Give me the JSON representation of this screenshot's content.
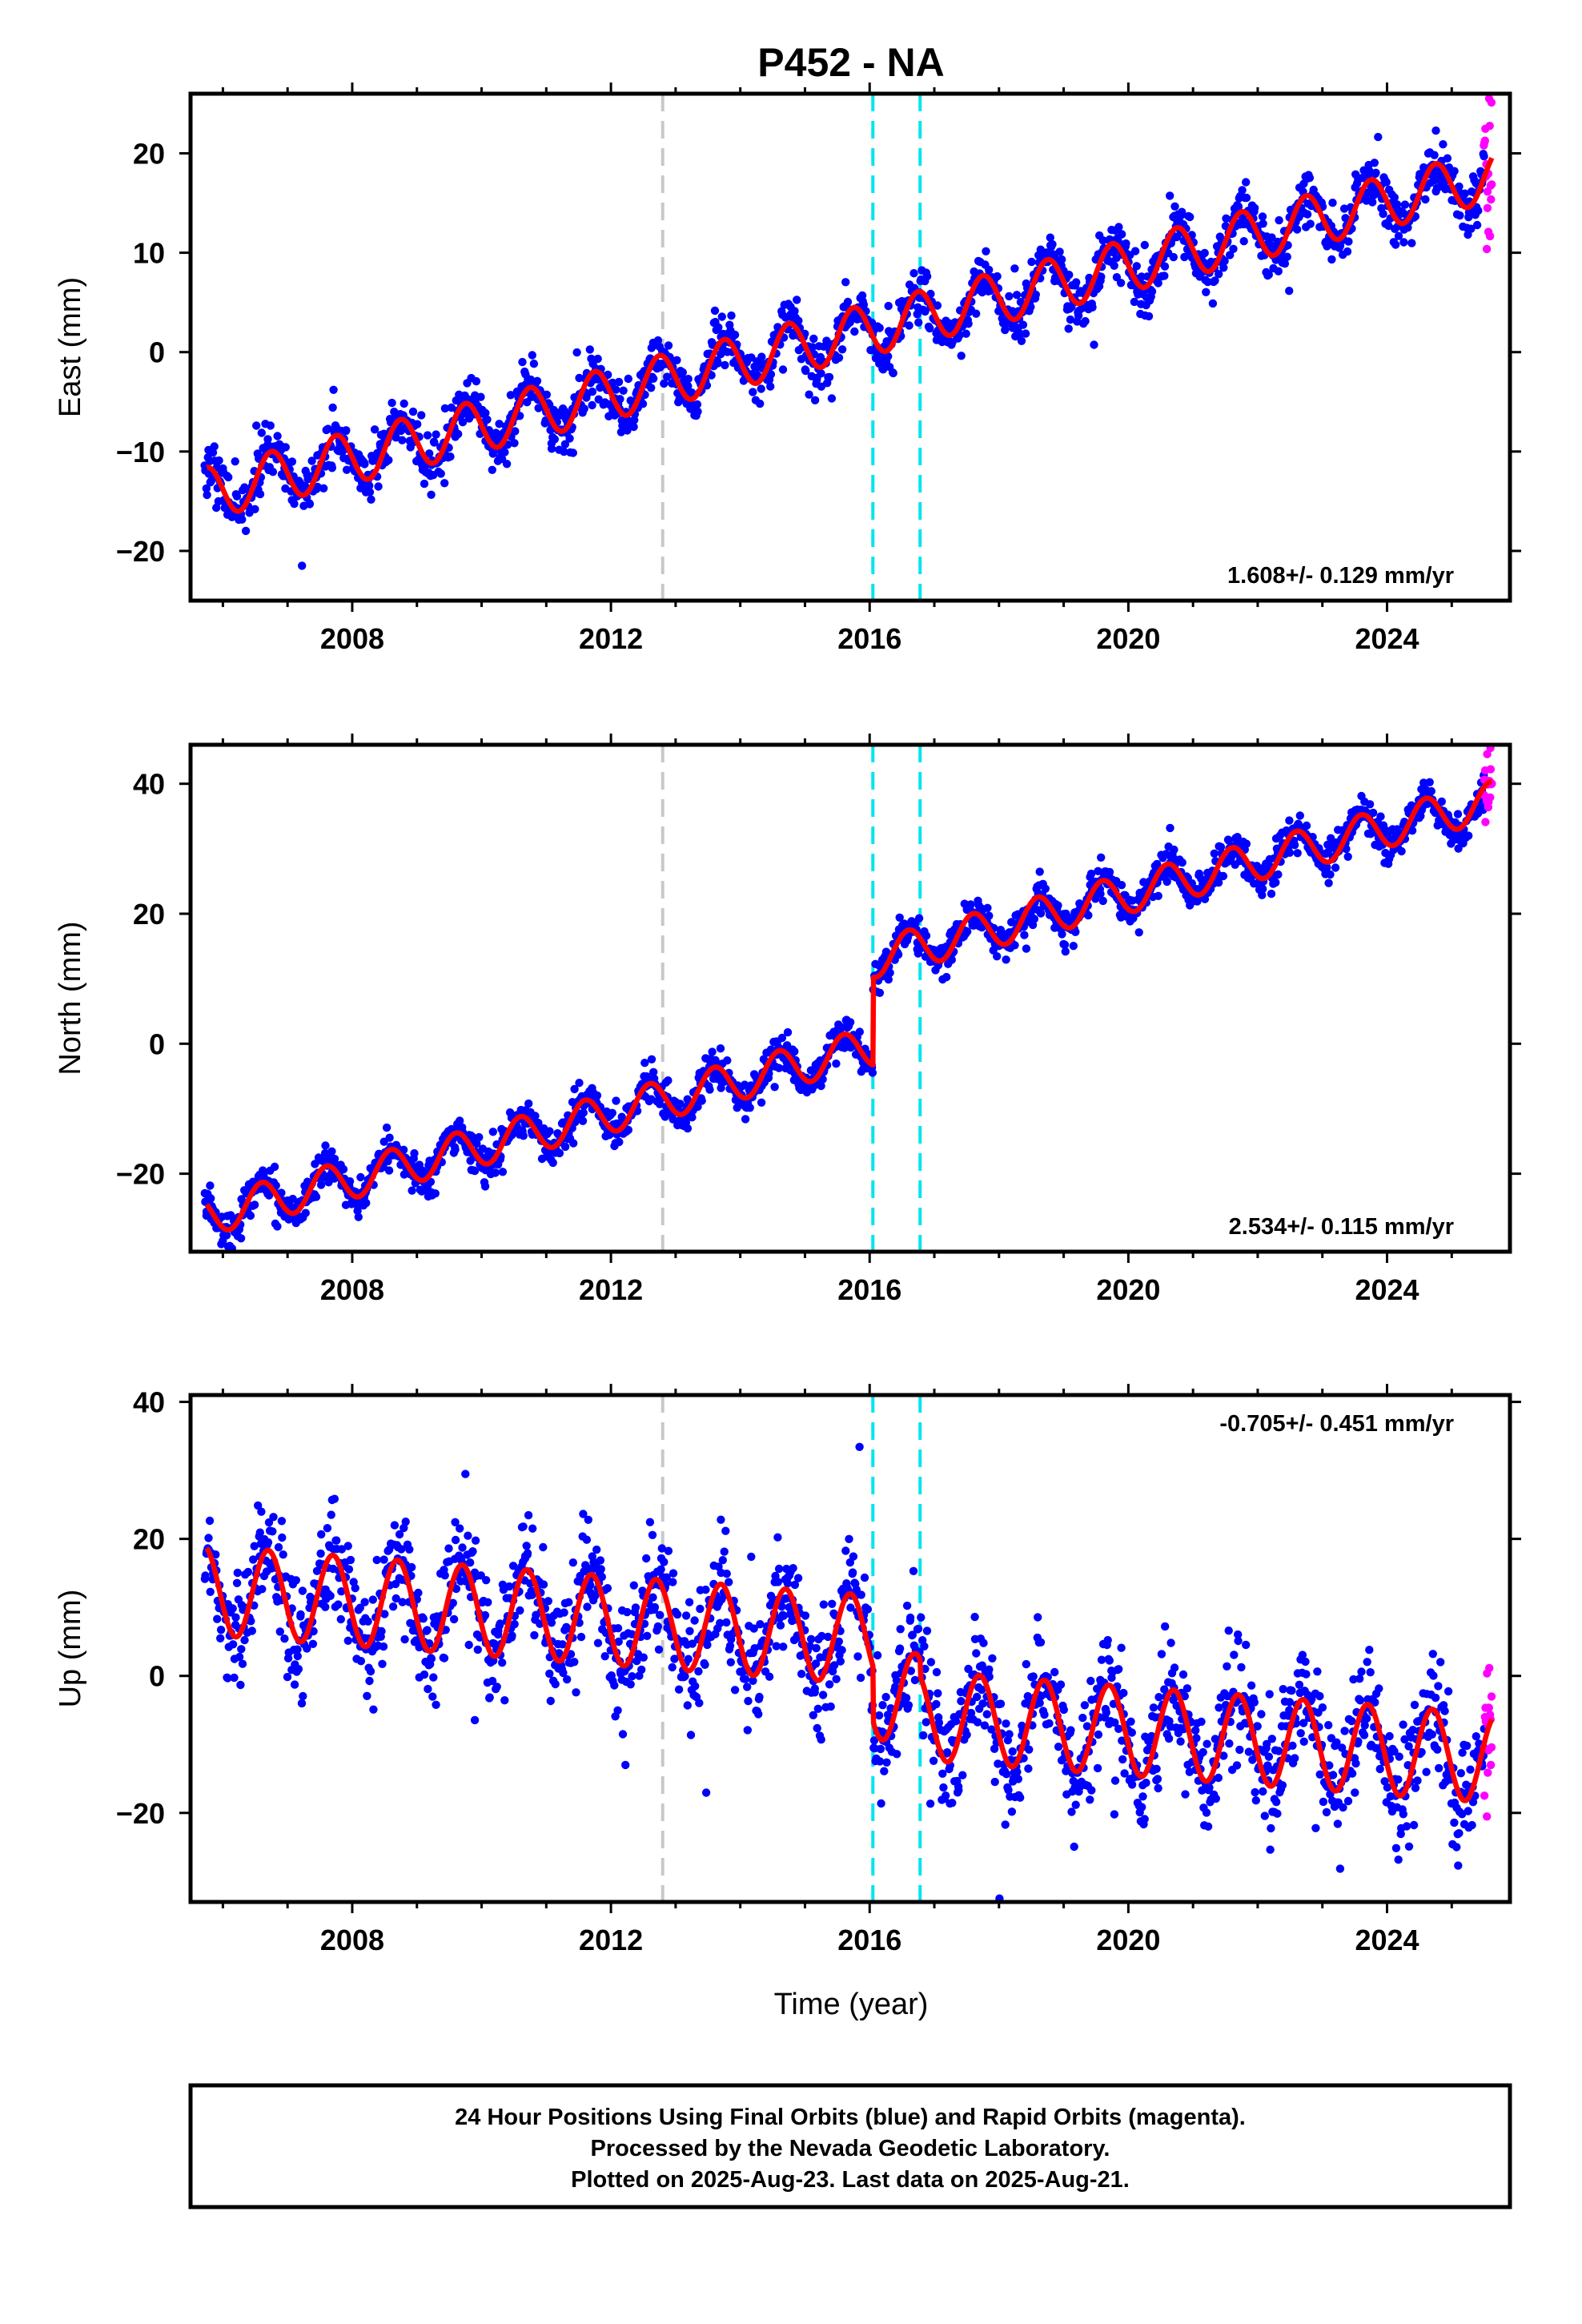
{
  "title": "P452 - NA",
  "xlabel": "Time (year)",
  "colors": {
    "final_orbits": "#0000ff",
    "rapid_orbits": "#ff00ff",
    "model": "#ff0000",
    "antenna_change": "#00e5ee",
    "other_event": "#c8c8c8"
  },
  "chart_data": [
    {
      "type": "scatter",
      "component": "East",
      "ylabel": "East (mm)",
      "rate_text": "1.608+/- 0.129 mm/yr",
      "rate_position": "bottom-right",
      "xlim": [
        2005.5,
        2025.9
      ],
      "ylim": [
        -25,
        26
      ],
      "xticks": [
        2008,
        2012,
        2016,
        2020,
        2024
      ],
      "yticks": [
        -20,
        -10,
        0,
        10,
        20
      ],
      "vlines": [
        {
          "x": 2012.8,
          "kind": "other_event"
        },
        {
          "x": 2016.05,
          "kind": "antenna_change"
        },
        {
          "x": 2016.78,
          "kind": "antenna_change"
        }
      ],
      "model": {
        "start": 2005.75,
        "end": 2025.62,
        "intercept_at_start": -14.2,
        "rate": 1.608,
        "amplitude": 2.6,
        "peak_phase": 0.75,
        "offsets": [],
        "step_mm": 0.25
      },
      "series": [
        {
          "name": "Final Orbits",
          "color_key": "final_orbits",
          "start": 2005.72,
          "end": 2025.5,
          "scatter": 1.3,
          "step": 0.011
        },
        {
          "name": "Rapid Orbits",
          "color_key": "rapid_orbits",
          "start": 2025.5,
          "end": 2025.62,
          "scatter": 5.0,
          "step": 0.007
        }
      ]
    },
    {
      "type": "scatter",
      "component": "North",
      "ylabel": "North (mm)",
      "rate_text": "2.534+/- 0.115 mm/yr",
      "rate_position": "bottom-right",
      "xlim": [
        2005.5,
        2025.9
      ],
      "ylim": [
        -32,
        46
      ],
      "xticks": [
        2008,
        2012,
        2016,
        2020,
        2024
      ],
      "yticks": [
        -20,
        0,
        20,
        40
      ],
      "vlines": [
        {
          "x": 2012.8,
          "kind": "other_event"
        },
        {
          "x": 2016.05,
          "kind": "antenna_change"
        },
        {
          "x": 2016.78,
          "kind": "antenna_change"
        }
      ],
      "model": {
        "start": 2005.75,
        "end": 2025.62,
        "intercept_at_start": -26.5,
        "rate": 2.534,
        "amplitude": 3.0,
        "peak_phase": 0.6,
        "offsets": [
          {
            "x": 2016.05,
            "jump": 13.5
          }
        ],
        "step_mm": 0.25
      },
      "series": [
        {
          "name": "Final Orbits",
          "color_key": "final_orbits",
          "start": 2005.72,
          "end": 2025.5,
          "scatter": 1.4,
          "step": 0.011
        },
        {
          "name": "Rapid Orbits",
          "color_key": "rapid_orbits",
          "start": 2025.5,
          "end": 2025.62,
          "scatter": 2.5,
          "step": 0.007
        }
      ]
    },
    {
      "type": "scatter",
      "component": "Up",
      "ylabel": "Up (mm)",
      "rate_text": "-0.705+/- 0.451 mm/yr",
      "rate_position": "top-right",
      "xlim": [
        2005.5,
        2025.9
      ],
      "ylim": [
        -33,
        41
      ],
      "xticks": [
        2008,
        2012,
        2016,
        2020,
        2024
      ],
      "yticks": [
        -20,
        0,
        20,
        40
      ],
      "vlines": [
        {
          "x": 2012.8,
          "kind": "other_event"
        },
        {
          "x": 2016.05,
          "kind": "antenna_change"
        },
        {
          "x": 2016.78,
          "kind": "antenna_change"
        }
      ],
      "model": {
        "start": 2005.75,
        "end": 2025.62,
        "intercept_at_start": 12.5,
        "rate": -0.705,
        "amplitude": 6.5,
        "peak_phase": 0.7,
        "offsets": [
          {
            "x": 2016.05,
            "jump": -8.0
          },
          {
            "x": 2016.78,
            "jump": -2.5
          }
        ],
        "step_mm": 0.25
      },
      "series": [
        {
          "name": "Final Orbits",
          "color_key": "final_orbits",
          "start": 2005.72,
          "end": 2025.5,
          "scatter": 4.2,
          "step": 0.011
        },
        {
          "name": "Rapid Orbits",
          "color_key": "rapid_orbits",
          "start": 2025.5,
          "end": 2025.62,
          "scatter": 5.0,
          "step": 0.007
        }
      ]
    }
  ],
  "footer": {
    "line1": "24 Hour Positions Using Final Orbits (blue) and Rapid Orbits (magenta).",
    "line2": "Processed by the Nevada Geodetic Laboratory.",
    "line3": "Plotted on 2025-Aug-23. Last data on 2025-Aug-21."
  }
}
